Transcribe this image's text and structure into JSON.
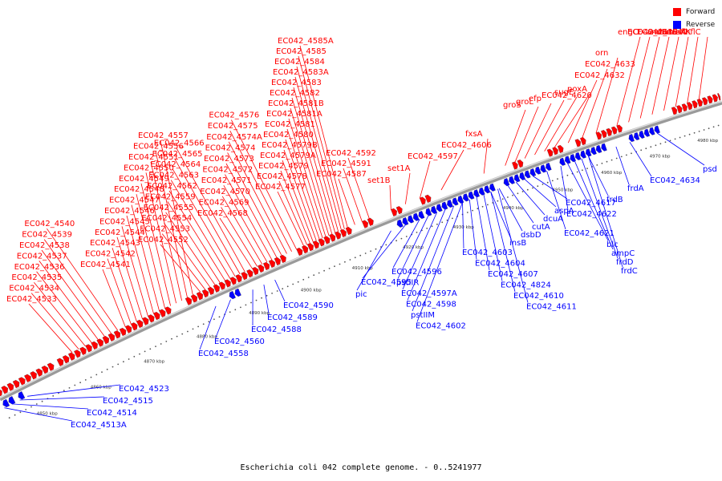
{
  "legend": {
    "forward": {
      "label": "Forward",
      "color": "#ff0000"
    },
    "reverse": {
      "label": "Reverse",
      "color": "#0000ff"
    }
  },
  "caption": "Escherichia coli 042 complete genome. - 0..5241977",
  "scale_labels": [
    "4850 kbp",
    "4860 kbp",
    "4870 kbp",
    "4880 kbp",
    "4890 kbp",
    "4900 kbp",
    "4910 kbp",
    "4920 kbp",
    "4930 kbp",
    "4940 kbp",
    "4950 kbp",
    "4960 kbp",
    "4970 kbp",
    "4980 kbp"
  ],
  "forward_labels": [
    "EC042_4533",
    "EC042_4534",
    "EC042_4535",
    "EC042_4536",
    "EC042_4537",
    "EC042_4538",
    "EC042_4539",
    "EC042_4540",
    "EC042_4541",
    "EC042_4542",
    "EC042_4543",
    "EC042_4544",
    "EC042_4545",
    "EC042_4546",
    "EC042_4547",
    "EC042_4548",
    "EC042_4549",
    "EC042_4550",
    "EC042_4551",
    "EC042_4556",
    "EC042_4557",
    "EC042_4552",
    "EC042_4553",
    "EC042_4554",
    "EC042_4555",
    "EC042_4559",
    "EC042_4562",
    "EC042_4563",
    "EC042_4564",
    "EC042_4565",
    "EC042_4566",
    "EC042_4568",
    "EC042_4569",
    "EC042_4570",
    "EC042_4571",
    "EC042_4572",
    "EC042_4573",
    "EC042_4574",
    "EC042_4574A",
    "EC042_4575",
    "EC042_4576",
    "EC042_4577",
    "EC042_4578",
    "EC042_4579",
    "EC042_4579A",
    "EC042_4579B",
    "EC042_4580",
    "EC042_4581",
    "EC042_4581A",
    "EC042_4581B",
    "EC042_4582",
    "EC042_4583",
    "EC042_4583A",
    "EC042_4584",
    "EC042_4585",
    "EC042_4585A",
    "EC042_4587",
    "EC042_4591",
    "EC042_4592",
    "set1B",
    "set1A",
    "EC042_4597",
    "EC042_4606",
    "fxsA",
    "groS",
    "groL",
    "efp",
    "EC042_4620",
    "sugE",
    "poxA",
    "EC042_4632",
    "EC042_4633",
    "orn",
    "engC",
    "EC042_4639",
    "EC042_4640",
    "amiB",
    "mutL",
    "miaA",
    "hflK",
    "hflC"
  ],
  "reverse_labels": [
    "EC042_4513A",
    "EC042_4514",
    "EC042_4515",
    "EC042_4523",
    "EC042_4558",
    "EC042_4560",
    "EC042_4588",
    "EC042_4589",
    "EC042_4590",
    "pic",
    "EC042_4595",
    "EC042_4596",
    "pstIIR",
    "EC042_4597A",
    "EC042_4598",
    "pstIIM",
    "EC042_4602",
    "EC042_4603",
    "EC042_4604",
    "EC042_4607",
    "EC042_4824",
    "EC042_4610",
    "EC042_4611",
    "insB",
    "dsbD",
    "cutA",
    "dcuA",
    "aspA",
    "EC042_4617",
    "EC042_4621",
    "EC042_4622",
    "blc",
    "ampC",
    "frdD",
    "frdC",
    "frdB",
    "frdA",
    "EC042_4634",
    "psd"
  ]
}
